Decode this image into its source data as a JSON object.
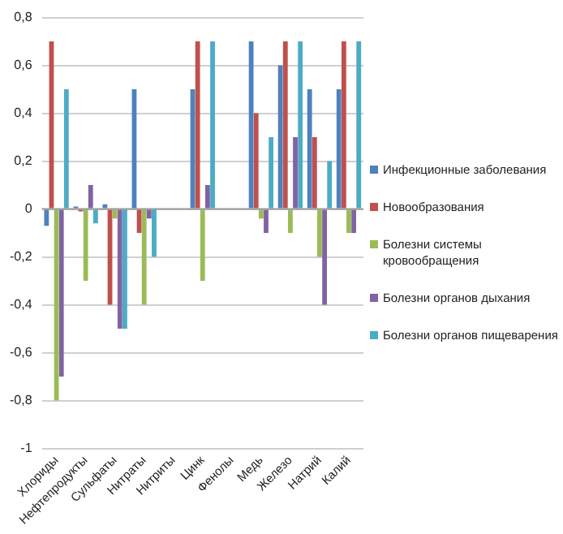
{
  "chart_data": {
    "type": "bar",
    "categories": [
      "Хлориды",
      "Нефтепродукты",
      "Сульфаты",
      "Нитраты",
      "Нитриты",
      "Цинк",
      "Фенолы",
      "Медь",
      "Железо",
      "Натрий",
      "Калий"
    ],
    "series": [
      {
        "name": "Инфекционные заболевания",
        "color": "#4f81bd",
        "values": [
          -0.07,
          0.01,
          0.02,
          0.5,
          null,
          0.5,
          null,
          0.7,
          0.6,
          0.5,
          0.5
        ]
      },
      {
        "name": "Новообразования",
        "color": "#c0504d",
        "values": [
          0.7,
          -0.01,
          -0.4,
          -0.1,
          null,
          0.7,
          null,
          0.4,
          0.7,
          0.3,
          0.7
        ]
      },
      {
        "name": "Болезни системы кровообращения",
        "color": "#9bbb59",
        "values": [
          -0.8,
          -0.3,
          -0.04,
          -0.4,
          null,
          -0.3,
          null,
          -0.04,
          -0.1,
          -0.2,
          -0.1
        ]
      },
      {
        "name": "Болезни органов дыхания",
        "color": "#8064a2",
        "values": [
          -0.7,
          0.1,
          -0.5,
          -0.04,
          null,
          0.1,
          null,
          -0.1,
          0.3,
          -0.4,
          -0.1
        ]
      },
      {
        "name": "Болезни органов пищеварения",
        "color": "#4bacc6",
        "values": [
          0.5,
          -0.06,
          -0.5,
          -0.2,
          null,
          0.7,
          null,
          0.3,
          0.7,
          0.2,
          0.7
        ]
      }
    ],
    "ylim": [
      -1,
      0.8
    ],
    "yticks": [
      -1,
      {
        "value": -0.8,
        "label": "-0,8"
      },
      {
        "value": -0.6,
        "label": "-0,6"
      },
      {
        "value": -0.4,
        "label": "-0,4"
      },
      {
        "value": -0.2,
        "label": "-0,2"
      },
      0,
      {
        "value": 0.2,
        "label": "0,2"
      },
      {
        "value": 0.4,
        "label": "0,4"
      },
      {
        "value": 0.6,
        "label": "0,6"
      },
      {
        "value": 0.8,
        "label": "0,8"
      }
    ],
    "grid": "y",
    "legend": "right"
  }
}
